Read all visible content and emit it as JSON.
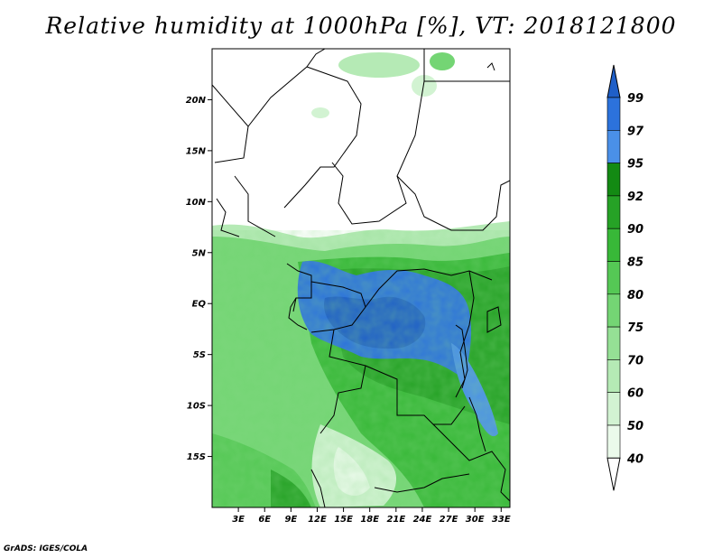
{
  "title": "Relative humidity at 1000hPa [%], VT: 2018121800",
  "credit": "GrADS: IGES/COLA",
  "map": {
    "lon_range": [
      0,
      34
    ],
    "lat_range": [
      -20,
      25
    ],
    "lon_ticks": [
      "3E",
      "6E",
      "9E",
      "12E",
      "15E",
      "18E",
      "21E",
      "24E",
      "27E",
      "30E",
      "33E"
    ],
    "lat_ticks": [
      "20N",
      "15N",
      "10N",
      "5N",
      "EQ",
      "5S",
      "10S",
      "15S"
    ]
  },
  "colorbar": {
    "levels": [
      "99",
      "97",
      "95",
      "92",
      "90",
      "85",
      "80",
      "75",
      "70",
      "60",
      "50",
      "40"
    ],
    "colors": {
      "above_99": "#1f5fc8",
      "97_99": "#2c72dc",
      "95_97": "#4a90e8",
      "92_95": "#138a13",
      "90_92": "#26a226",
      "85_90": "#38b838",
      "80_85": "#55c855",
      "75_80": "#74d574",
      "70_75": "#95e095",
      "60_70": "#b5eab5",
      "50_60": "#d2f3d2",
      "40_50": "#ebfaeb",
      "below_40": "#ffffff"
    }
  }
}
